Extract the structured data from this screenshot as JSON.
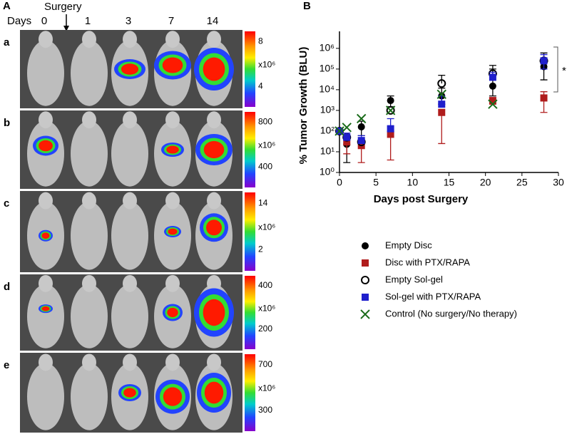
{
  "panel_a": {
    "label": "A",
    "days_label": "Days",
    "days": [
      "0",
      "1",
      "3",
      "7",
      "14"
    ],
    "surgery": "Surgery",
    "rows": [
      {
        "label": "a",
        "scale_ticks": [
          "8",
          "4"
        ],
        "unit": "x10⁶"
      },
      {
        "label": "b",
        "scale_ticks": [
          "800",
          "400"
        ],
        "unit": "x10⁶"
      },
      {
        "label": "c",
        "scale_ticks": [
          "14",
          "2"
        ],
        "unit": "x10⁶"
      },
      {
        "label": "d",
        "scale_ticks": [
          "400",
          "200"
        ],
        "unit": "x10⁶"
      },
      {
        "label": "e",
        "scale_ticks": [
          "700",
          "300"
        ],
        "unit": "x10⁶"
      }
    ]
  },
  "chart_data": {
    "type": "scatter",
    "panel_label": "B",
    "x_label": "Days post Surgery",
    "y_label": "% Tumor Growth (BLU)",
    "log_y": true,
    "xlim": [
      0,
      30
    ],
    "xticks": [
      0,
      5,
      10,
      15,
      20,
      25,
      30
    ],
    "ylim": [
      1,
      3000000
    ],
    "yticks": [
      {
        "value": 1,
        "label": "10⁰"
      },
      {
        "value": 10,
        "label": "10¹"
      },
      {
        "value": 100,
        "label": "10²"
      },
      {
        "value": 1000,
        "label": "10³"
      },
      {
        "value": 10000,
        "label": "10⁴"
      },
      {
        "value": 100000,
        "label": "10⁵"
      },
      {
        "value": 1000000,
        "label": "10⁶"
      }
    ],
    "x": [
      0,
      1,
      3,
      7,
      14,
      21,
      28
    ],
    "series": [
      {
        "name": "Empty Disc",
        "marker": "circle",
        "color": "#000000",
        "values": [
          100,
          23,
          160,
          3000,
          5000,
          15000,
          130000
        ],
        "upper": [
          null,
          60,
          300,
          5000,
          12000,
          150000,
          600000
        ],
        "lower": [
          null,
          3,
          60,
          1500,
          2000,
          5000,
          30000
        ]
      },
      {
        "name": "Disc with PTX/RAPA",
        "marker": "square",
        "color": "#b01c1c",
        "values": [
          100,
          30,
          20,
          70,
          800,
          3000,
          4000
        ],
        "upper": [
          null,
          null,
          null,
          null,
          null,
          4000,
          8000
        ],
        "lower": [
          null,
          8,
          3,
          4,
          25,
          2000,
          800
        ]
      },
      {
        "name": "Empty Sol-gel",
        "marker": "open-circle",
        "color": "#000000",
        "values": [
          100,
          50,
          30,
          1000,
          20000,
          60000,
          250000
        ],
        "upper": [
          null,
          null,
          null,
          null,
          50000,
          100000,
          null
        ],
        "lower": [
          null,
          null,
          null,
          null,
          null,
          null,
          null
        ]
      },
      {
        "name": "Sol-gel with PTX/RAPA",
        "marker": "square",
        "color": "#1f1fcc",
        "values": [
          100,
          50,
          35,
          130,
          2000,
          40000,
          250000
        ],
        "upper": [
          null,
          80,
          60,
          400,
          5000,
          70000,
          500000
        ],
        "lower": [
          null,
          null,
          null,
          null,
          null,
          null,
          100000
        ]
      },
      {
        "name": "Control (No surgery/No therapy)",
        "marker": "x",
        "color": "#1a6b1a",
        "values": [
          100,
          150,
          400,
          1000,
          6000,
          2000,
          null
        ],
        "upper": [
          null,
          null,
          null,
          null,
          null,
          null,
          null
        ],
        "lower": [
          null,
          null,
          null,
          null,
          null,
          null,
          null
        ]
      }
    ],
    "annotation": "*"
  }
}
